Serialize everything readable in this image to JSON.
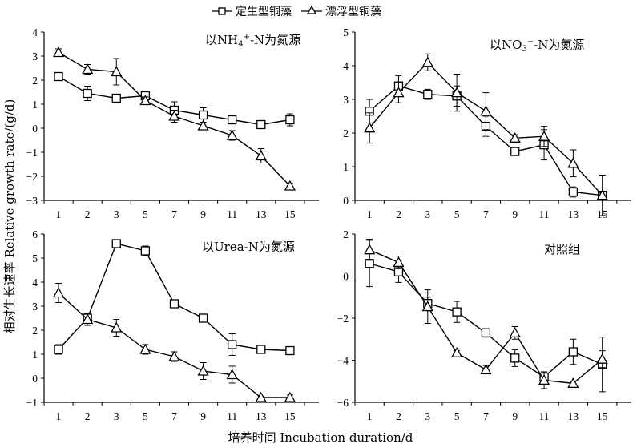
{
  "figure": {
    "xlabel": "培养时间 Incubation duration/d",
    "ylabel": "相对生长速率 Relative growth rate/(g/d)"
  },
  "legend": {
    "items": [
      {
        "label": "定生型铜藻",
        "marker": "square"
      },
      {
        "label": "漂浮型铜藻",
        "marker": "triangle"
      }
    ],
    "placement": "top-center"
  },
  "chart_data": [
    {
      "type": "line",
      "title": "以NH4+-N为氮源",
      "title_parts": {
        "pre": "以NH",
        "sub": "4",
        "sup": "+",
        "post": "-N为氮源"
      },
      "xticks": [
        1,
        2,
        3,
        5,
        7,
        9,
        11,
        13,
        15
      ],
      "ylim": [
        -3,
        4
      ],
      "yticks": [
        -3,
        -2,
        -1,
        0,
        1,
        2,
        3,
        4
      ],
      "series": [
        {
          "marker": "square",
          "values": [
            2.15,
            1.45,
            1.25,
            1.35,
            0.75,
            0.55,
            0.35,
            0.15,
            0.35
          ],
          "err": [
            0.1,
            0.3,
            0.1,
            0.2,
            0.35,
            0.3,
            0.1,
            0.1,
            0.25
          ]
        },
        {
          "marker": "triangle",
          "values": [
            3.15,
            2.45,
            2.35,
            1.15,
            0.5,
            0.1,
            -0.3,
            -1.15,
            -2.4
          ],
          "err": [
            0.15,
            0.2,
            0.55,
            0.15,
            0.25,
            0.15,
            0.2,
            0.3,
            0.1
          ]
        }
      ]
    },
    {
      "type": "line",
      "title": "以NO3−-N为氮源",
      "title_parts": {
        "pre": "以NO",
        "sub": "3",
        "sup": "−",
        "post": "-N为氮源"
      },
      "xticks": [
        1,
        2,
        3,
        5,
        7,
        9,
        11,
        13,
        15
      ],
      "ylim": [
        0,
        5
      ],
      "yticks": [
        0,
        1,
        2,
        3,
        4,
        5
      ],
      "series": [
        {
          "marker": "square",
          "values": [
            2.65,
            3.4,
            3.15,
            3.1,
            2.2,
            1.45,
            1.65,
            0.25,
            0.15
          ],
          "err": [
            0.35,
            0.3,
            0.15,
            0.3,
            0.3,
            0.1,
            0.45,
            0.15,
            0.1
          ]
        },
        {
          "marker": "triangle",
          "values": [
            2.15,
            3.2,
            4.1,
            3.2,
            2.65,
            1.85,
            1.9,
            1.1,
            0.15
          ],
          "err": [
            0.45,
            0.3,
            0.25,
            0.55,
            0.55,
            0.1,
            0.3,
            0.4,
            0.6
          ]
        }
      ]
    },
    {
      "type": "line",
      "title": "以Urea-N为氮源",
      "xticks": [
        1,
        2,
        3,
        5,
        7,
        9,
        11,
        13,
        15
      ],
      "ylim": [
        -1,
        6
      ],
      "yticks": [
        -1,
        0,
        1,
        2,
        3,
        4,
        5,
        6
      ],
      "series": [
        {
          "marker": "square",
          "values": [
            1.2,
            2.5,
            5.6,
            5.3,
            3.1,
            2.5,
            1.4,
            1.2,
            1.15
          ],
          "err": [
            0.2,
            0.15,
            0.1,
            0.2,
            0.1,
            0.1,
            0.45,
            0.1,
            0.1
          ]
        },
        {
          "marker": "triangle",
          "values": [
            3.55,
            2.45,
            2.1,
            1.2,
            0.9,
            0.3,
            0.15,
            -0.8,
            -0.8
          ],
          "err": [
            0.4,
            0.25,
            0.35,
            0.2,
            0.2,
            0.35,
            0.35,
            0.05,
            0.1
          ]
        }
      ]
    },
    {
      "type": "line",
      "title": "对照组",
      "xticks": [
        1,
        2,
        3,
        5,
        7,
        9,
        11,
        13,
        15
      ],
      "ylim": [
        -6,
        2
      ],
      "yticks": [
        -6,
        -4,
        -2,
        0,
        2
      ],
      "series": [
        {
          "marker": "square",
          "values": [
            0.6,
            0.2,
            -1.3,
            -1.7,
            -2.7,
            -3.9,
            -4.8,
            -3.6,
            -4.2
          ],
          "err": [
            1.1,
            0.5,
            0.3,
            0.5,
            0.2,
            0.4,
            0.2,
            0.6,
            1.3
          ]
        },
        {
          "marker": "triangle",
          "values": [
            1.25,
            0.65,
            -1.45,
            -3.65,
            -4.45,
            -2.7,
            -4.95,
            -5.1,
            -3.95
          ],
          "err": [
            0.5,
            0.3,
            0.8,
            0.1,
            0.2,
            0.3,
            0.4,
            0.1,
            0.4
          ]
        }
      ]
    }
  ]
}
